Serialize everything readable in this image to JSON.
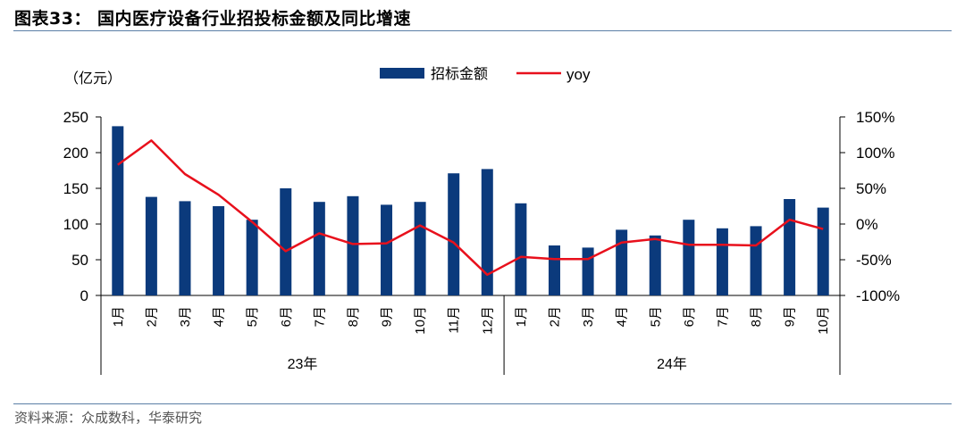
{
  "header": {
    "title": "图表33：  国内医疗设备行业招投标金额及同比增速"
  },
  "footer": {
    "source": "资料来源：众成数科，华泰研究"
  },
  "colors": {
    "bar": "#0b3a7c",
    "line": "#e8101c",
    "rule": "#5b7fa6"
  },
  "chart_data": {
    "type": "bar",
    "unit_label": "（亿元）",
    "categories": [
      "1月",
      "2月",
      "3月",
      "4月",
      "5月",
      "6月",
      "7月",
      "8月",
      "9月",
      "10月",
      "11月",
      "12月",
      "1月",
      "2月",
      "3月",
      "4月",
      "5月",
      "6月",
      "7月",
      "8月",
      "9月",
      "10月"
    ],
    "groups": [
      {
        "label": "23年",
        "count": 12
      },
      {
        "label": "24年",
        "count": 10
      }
    ],
    "series": [
      {
        "name": "招标金额",
        "type": "bar",
        "axis": "left",
        "values": [
          237,
          138,
          132,
          125,
          106,
          150,
          131,
          139,
          127,
          131,
          171,
          177,
          129,
          70,
          67,
          92,
          84,
          106,
          94,
          97,
          135,
          123
        ]
      },
      {
        "name": "yoy",
        "type": "line",
        "axis": "right",
        "values": [
          83,
          117,
          70,
          41,
          3,
          -38,
          -13,
          -28,
          -27,
          -2,
          -26,
          -71,
          -46,
          -49,
          -49,
          -26,
          -21,
          -29,
          -29,
          -30,
          6,
          -7
        ]
      }
    ],
    "left_axis": {
      "min": 0,
      "max": 250,
      "ticks": [
        0,
        50,
        100,
        150,
        200,
        250
      ]
    },
    "right_axis": {
      "min": -100,
      "max": 150,
      "ticks": [
        -100,
        -50,
        0,
        50,
        100,
        150
      ],
      "tick_labels": [
        "-100%",
        "-50%",
        "0%",
        "50%",
        "100%",
        "150%"
      ]
    },
    "legend_position": "top-center",
    "grid": false
  }
}
